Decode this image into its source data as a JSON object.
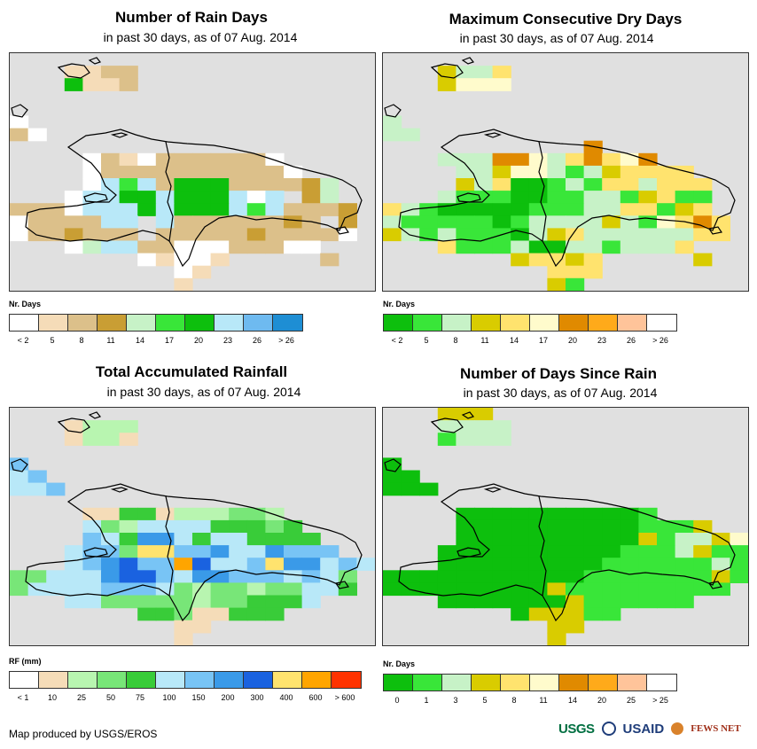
{
  "panels": [
    {
      "title": "Number of Rain Days",
      "subtitle": "in past 30 days, as of 07 Aug. 2014",
      "legend_title": "Nr. Days",
      "legend_colors": [
        "#ffffff",
        "#f5dcb8",
        "#dcc08a",
        "#c99e34",
        "#c7f2c7",
        "#39e639",
        "#0dbf0d",
        "#b8e8f8",
        "#6ebaf0",
        "#1e8ed4"
      ],
      "legend_labels": [
        "< 2",
        "5",
        "8",
        "11",
        "14",
        "17",
        "20",
        "23",
        "26",
        "> 26"
      ],
      "map_cells": [
        "....................",
        "...BBCC.............",
        "...GBBC.............",
        "....................",
        "....................",
        "A...................",
        "CA..................",
        "....................",
        "....ACBACCCCCCA.....",
        "....ACCCCCCCCCCA....",
        "....AMFMCGGGCCCCDE..",
        "...AMHGGMGGGMAMKDE..",
        "CCCAMHHGMGGGMFMCCCD.",
        "ACCCCMHKMCCCCCCDCKD.",
        "ACCDCCCKCCCCCDCCCCA.",
        "...AEMMCCAAACCCAA...",
        ".......ABAAB.....C..",
        ".........AB.........",
        ".........B.........."
      ]
    },
    {
      "title": "Maximum Consecutive Dry Days",
      "subtitle": "in past 30 days, as of 07 Aug. 2014",
      "legend_title": "Nr. Days",
      "legend_colors": [
        "#0dbf0d",
        "#39e639",
        "#c7f2c7",
        "#d9cc00",
        "#ffe36e",
        "#fffbcc",
        "#e08a00",
        "#ffaa1a",
        "#ffc49a",
        "#ffffff"
      ],
      "legend_labels": [
        "< 2",
        "5",
        "8",
        "11",
        "14",
        "17",
        "20",
        "23",
        "26",
        "> 26"
      ],
      "map_cells": [
        "....................",
        "...DCCE.............",
        "...DFFF.............",
        "....................",
        "....................",
        "C...................",
        "CC..................",
        "...........G........",
        "...CCCGGFCEGEFG.....",
        "....CCDFFCBCDEEEE...",
        "....DCEAABCBEECEEE..",
        "...CBBBAABBCCBDEBB..",
        "ECBAAAAABBBCCEEBDE..",
        "CBBBBBABCCCCDCBFEGE.",
        "DCBCBBBACDECCCCCCEE.",
        "...EBBBCAACCBCCCE...",
        ".......DEEDE.....D..",
        ".........EEE........",
        ".........DB........."
      ]
    },
    {
      "title": "Total Accumulated Rainfall",
      "subtitle": "in past 30 days, as of 07 Aug. 2014",
      "legend_title": "RF (mm)",
      "legend_colors": [
        "#ffffff",
        "#f5dcb8",
        "#b8f5b0",
        "#78e678",
        "#39cc39",
        "#b8e8f8",
        "#78c4f5",
        "#3a9ae8",
        "#1a62e0",
        "#ffe36e",
        "#ffa500",
        "#ff3300"
      ],
      "legend_labels": [
        "< 1",
        "10",
        "25",
        "50",
        "75",
        "100",
        "150",
        "200",
        "300",
        "400",
        "600",
        "> 600"
      ],
      "map_cells": [
        "....................",
        "...BCCC.............",
        "...BCCB.............",
        "....................",
        "G...................",
        "FG..................",
        "FFG.................",
        "....................",
        "....BBEEBCCCDDC.....",
        "....FDCFFFFEEEDE....",
        "....GFEHHFEFFEEEE...",
        "...FGGDJJGGHFFHGGG..",
        "...FGHIGGKIFFGJHHFGF",
        "DDFFFHIIGFHHGGGFGFD.",
        "DFFFFGGGFDCDDCDDFFE.",
        "...FFDDDDDCDDEEEF...",
        ".......EEDBBEEE.....",
        ".........BB.........",
        ".........B.........."
      ]
    },
    {
      "title": "Number of Days Since Rain",
      "subtitle": "in past 30 days, as of 07 Aug. 2014",
      "legend_title": "Nr. Days",
      "legend_colors": [
        "#0dbf0d",
        "#39e639",
        "#c7f2c7",
        "#d9cc00",
        "#ffe36e",
        "#fffbcc",
        "#e08a00",
        "#ffaa1a",
        "#ffc49a",
        "#ffffff"
      ],
      "legend_labels": [
        "0",
        "1",
        "3",
        "5",
        "8",
        "11",
        "14",
        "20",
        "25",
        "> 25"
      ],
      "map_cells": [
        "...DDD..............",
        "...CCCC.............",
        "...BCCC.............",
        "....................",
        "A...................",
        "AA..................",
        "AAA.................",
        "....................",
        "....AAAAAAAAAAB.....",
        "....AAAAAAAAAABBBD..",
        "....AAAAAAAAAADBCCDF",
        "...AAAAAAAAAABBBCDBB",
        "...AAAAAAAAABBBBBBCB",
        "AAAAAAAAAAABBBBBBBDB",
        "AAAAAAAAADBBBBBBBBB.",
        "...AAAAAAADBBBBBB...",
        ".......ADDDBB.......",
        ".........DD.........",
        ".........D.........."
      ]
    }
  ],
  "map_code_index": {
    "A": 0,
    "B": 1,
    "C": 2,
    "D": 3,
    "E": 4,
    "F": 5,
    "G": 6,
    "H": 7,
    "I": 8,
    "J": 9,
    "K": 10,
    "L": 11,
    "M": 7
  },
  "footer": "Map produced by USGS/EROS",
  "logos": {
    "usgs": "USGS",
    "usaid": "USAID",
    "fews": "FEWS NET"
  }
}
